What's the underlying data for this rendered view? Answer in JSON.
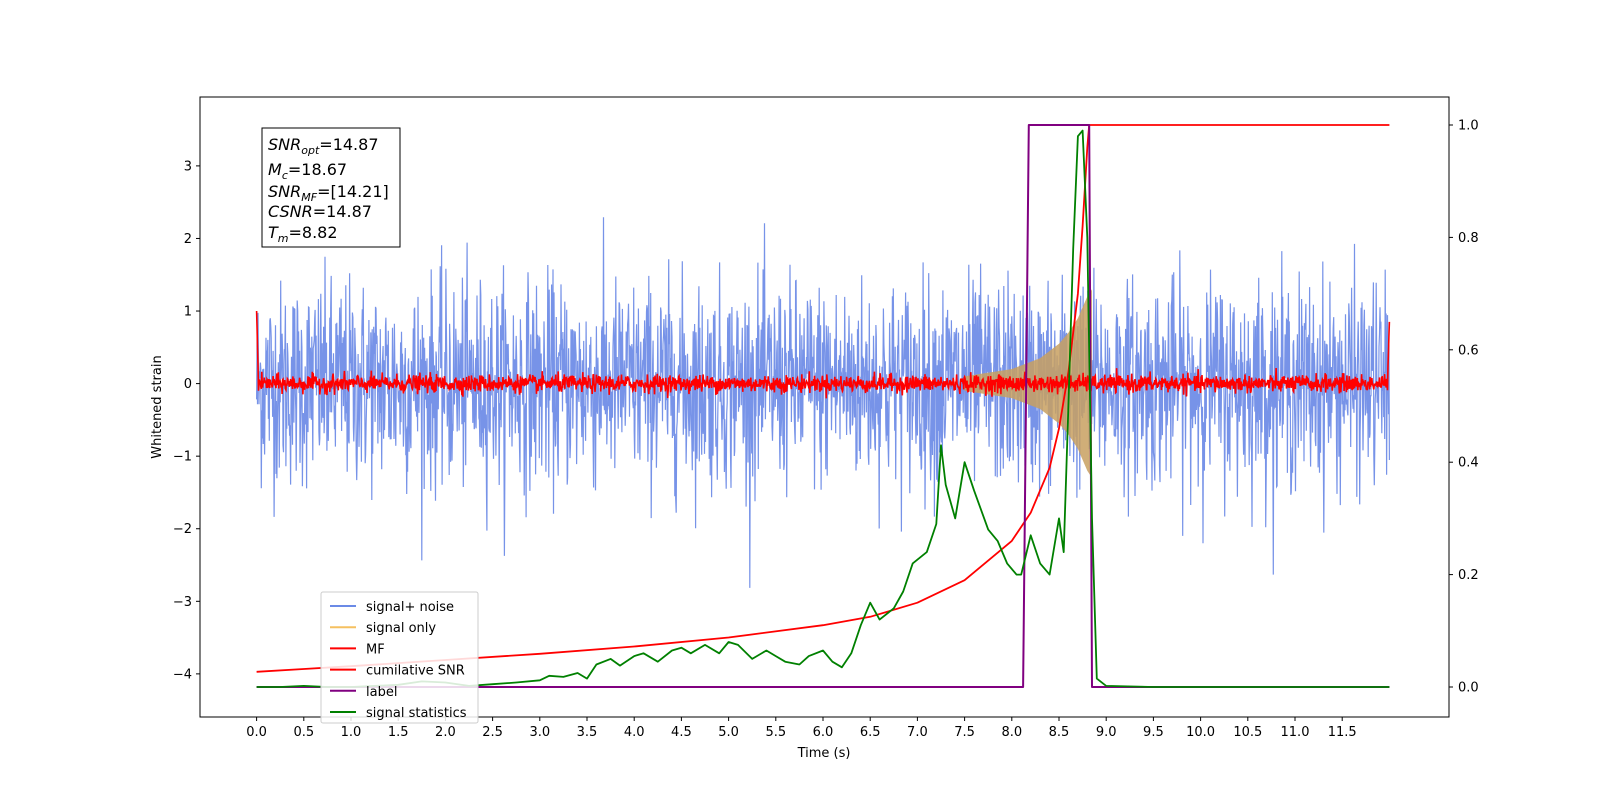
{
  "chart_data": {
    "type": "line",
    "xlabel": "Time (s)",
    "ylabel": "Whitened strain",
    "xlim": [
      -0.6,
      12.6
    ],
    "ylim": [
      -4.5,
      3.9
    ],
    "ylim_right": [
      -0.05,
      1.03
    ],
    "grid": false,
    "legend_placement": "lower-left",
    "x_ticks": [
      "0.0",
      "0.5",
      "1.0",
      "1.5",
      "2.0",
      "2.5",
      "3.0",
      "3.5",
      "4.0",
      "4.5",
      "5.0",
      "5.5",
      "6.0",
      "6.5",
      "7.0",
      "7.5",
      "8.0",
      "8.5",
      "9.0",
      "9.5",
      "10.0",
      "10.5",
      "11.0",
      "11.5"
    ],
    "y_ticks_left": [
      "3",
      "2",
      "1",
      "0",
      "−1",
      "−2",
      "−3",
      "−4"
    ],
    "y_ticks_right": [
      "1.0",
      "0.8",
      "0.6",
      "0.4",
      "0.2",
      "0.0"
    ],
    "annotation": {
      "snr_opt": "=14.87",
      "mc": "=18.67",
      "snr_mf": "=[14.21]",
      "csnr": "=14.87",
      "tm": "=8.82"
    },
    "series": [
      {
        "name": "signal+ noise",
        "color": "#6b8ae6",
        "axis": "left",
        "noise_amplitude": 1.0,
        "x_range": [
          0.0,
          12.0
        ]
      },
      {
        "name": "signal only",
        "color": "#f5c060",
        "axis": "left",
        "x": [
          7.5,
          8.0,
          8.3,
          8.5,
          8.6,
          8.7,
          8.8,
          8.85
        ],
        "envelope": [
          0.1,
          0.2,
          0.35,
          0.55,
          0.7,
          0.9,
          1.2,
          1.3
        ]
      },
      {
        "name": "MF",
        "color": "#ff0000",
        "axis": "left",
        "noise_amplitude": 0.12,
        "x_range": [
          0.0,
          12.0
        ]
      },
      {
        "name": "cumilative SNR",
        "color": "#ff0000",
        "axis": "right",
        "x": [
          0.0,
          0.5,
          1.0,
          2.0,
          3.0,
          4.0,
          5.0,
          6.0,
          6.5,
          7.0,
          7.5,
          8.0,
          8.2,
          8.4,
          8.5,
          8.6,
          8.7,
          8.75,
          8.8,
          8.82,
          12.0
        ],
        "y": [
          0.027,
          0.032,
          0.037,
          0.048,
          0.059,
          0.072,
          0.088,
          0.11,
          0.125,
          0.15,
          0.19,
          0.26,
          0.31,
          0.39,
          0.46,
          0.56,
          0.7,
          0.82,
          0.96,
          1.0,
          1.0
        ]
      },
      {
        "name": "label",
        "color": "#800080",
        "axis": "right",
        "x": [
          0.0,
          8.12,
          8.18,
          8.82,
          8.85,
          12.0
        ],
        "y": [
          0.0,
          0.0,
          1.0,
          1.0,
          0.0,
          0.0
        ]
      },
      {
        "name": "signal statistics",
        "color": "#008000",
        "axis": "right",
        "x": [
          0.0,
          0.25,
          0.5,
          0.75,
          1.0,
          1.25,
          1.5,
          1.75,
          2.0,
          2.25,
          2.5,
          2.75,
          3.0,
          3.1,
          3.25,
          3.4,
          3.5,
          3.6,
          3.75,
          3.85,
          4.0,
          4.1,
          4.25,
          4.4,
          4.5,
          4.6,
          4.75,
          4.9,
          5.0,
          5.1,
          5.25,
          5.4,
          5.5,
          5.6,
          5.75,
          5.85,
          6.0,
          6.1,
          6.2,
          6.3,
          6.4,
          6.5,
          6.6,
          6.75,
          6.85,
          6.95,
          7.1,
          7.2,
          7.25,
          7.3,
          7.4,
          7.5,
          7.6,
          7.75,
          7.85,
          7.95,
          8.05,
          8.1,
          8.2,
          8.3,
          8.4,
          8.5,
          8.55,
          8.6,
          8.65,
          8.7,
          8.75,
          8.8,
          8.85,
          8.9,
          9.0,
          9.5,
          10.0,
          11.0,
          12.0
        ],
        "y": [
          0.0,
          0.0,
          0.002,
          0.0,
          0.0,
          0.002,
          0.004,
          0.01,
          0.008,
          0.002,
          0.005,
          0.008,
          0.012,
          0.02,
          0.018,
          0.025,
          0.015,
          0.04,
          0.05,
          0.038,
          0.055,
          0.06,
          0.045,
          0.065,
          0.07,
          0.06,
          0.075,
          0.06,
          0.08,
          0.075,
          0.05,
          0.065,
          0.055,
          0.045,
          0.04,
          0.055,
          0.065,
          0.045,
          0.035,
          0.06,
          0.11,
          0.15,
          0.12,
          0.14,
          0.17,
          0.22,
          0.24,
          0.29,
          0.43,
          0.36,
          0.3,
          0.4,
          0.35,
          0.28,
          0.26,
          0.22,
          0.2,
          0.2,
          0.27,
          0.22,
          0.2,
          0.3,
          0.24,
          0.5,
          0.78,
          0.98,
          0.99,
          0.8,
          0.3,
          0.015,
          0.002,
          0.0,
          0.0,
          0.0,
          0.0
        ]
      }
    ]
  }
}
